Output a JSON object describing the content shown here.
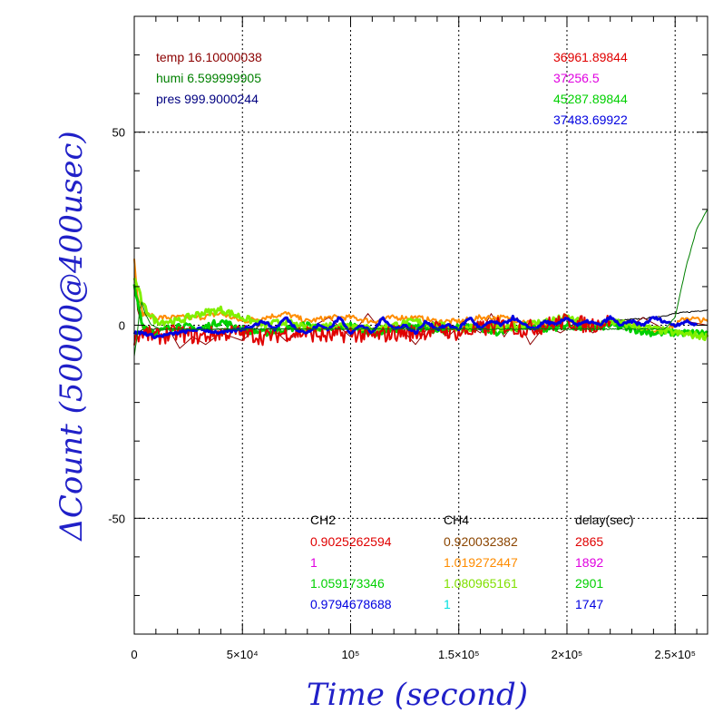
{
  "chart_data": {
    "type": "line",
    "xlabel": "Time (second)",
    "ylabel": "ΔCount (50000@400usec)",
    "xlim": [
      0,
      265000
    ],
    "ylim": [
      -80,
      80
    ],
    "x_ticks": [
      {
        "value": 0,
        "label": "0"
      },
      {
        "value": 50000,
        "label": "5×10⁴"
      },
      {
        "value": 100000,
        "label": "10⁵"
      },
      {
        "value": 150000,
        "label": "1.5×10⁵"
      },
      {
        "value": 200000,
        "label": "2×10⁵"
      },
      {
        "value": 250000,
        "label": "2.5×10⁵"
      }
    ],
    "y_ticks": [
      {
        "value": 50,
        "label": "50"
      },
      {
        "value": 0,
        "label": "0"
      },
      {
        "value": -50,
        "label": "-50"
      }
    ],
    "grid": true,
    "env": [
      {
        "text": "temp 16.10000038",
        "color": "#8b0000"
      },
      {
        "text": "humi 6.599999905",
        "color": "#008000"
      },
      {
        "text": "pres 999.9000244",
        "color": "#000080"
      }
    ],
    "top_right_values": [
      {
        "text": "36961.89844",
        "color": "#e00000"
      },
      {
        "text": "37256.5",
        "color": "#e000e0"
      },
      {
        "text": "45287.89844",
        "color": "#00d000"
      },
      {
        "text": "37483.69922",
        "color": "#0000e0"
      }
    ],
    "table": {
      "headers": [
        "CH2",
        "CH4",
        "delay(sec)"
      ],
      "rows": [
        {
          "ch2": "0.9025262594",
          "ch2_color": "#e00000",
          "ch4": "0.920032382",
          "ch4_color": "#8b4500",
          "delay": "2865",
          "delay_color": "#e00000"
        },
        {
          "ch2": "1",
          "ch2_color": "#e000e0",
          "ch4": "1.019272447",
          "ch4_color": "#ff8c00",
          "delay": "1892",
          "delay_color": "#e000e0"
        },
        {
          "ch2": "1.059173346",
          "ch2_color": "#00d000",
          "ch4": "1.080965161",
          "ch4_color": "#80e000",
          "delay": "2901",
          "delay_color": "#00d000"
        },
        {
          "ch2": "0.9794678688",
          "ch2_color": "#0000e0",
          "ch4": "1",
          "ch4_color": "#00e0e0",
          "delay": "1747",
          "delay_color": "#0000e0"
        }
      ]
    },
    "series": [
      {
        "color": "#000000",
        "width": 1,
        "noise": 0.2,
        "points": [
          [
            0,
            -3
          ],
          [
            4000,
            -1
          ],
          [
            20000,
            -1
          ],
          [
            60000,
            -1
          ],
          [
            100000,
            -1
          ],
          [
            140000,
            -0.5
          ],
          [
            180000,
            -1
          ],
          [
            200000,
            0
          ],
          [
            220000,
            1
          ],
          [
            240000,
            2
          ],
          [
            250000,
            3
          ],
          [
            265000,
            4
          ]
        ]
      },
      {
        "color": "#8b0000",
        "width": 1,
        "noise": 0,
        "points": [
          [
            0,
            16
          ],
          [
            1500,
            4
          ],
          [
            4000,
            -1
          ],
          [
            9000,
            -3
          ],
          [
            15000,
            0
          ],
          [
            21000,
            -6
          ],
          [
            27000,
            -3
          ],
          [
            33000,
            -5
          ],
          [
            40000,
            -2
          ],
          [
            50000,
            -4
          ],
          [
            60000,
            1
          ],
          [
            70000,
            -4
          ],
          [
            80000,
            -1
          ],
          [
            90000,
            2
          ],
          [
            100000,
            -3
          ],
          [
            108000,
            3
          ],
          [
            115000,
            -2
          ],
          [
            122000,
            0
          ],
          [
            130000,
            -5
          ],
          [
            138000,
            1
          ],
          [
            145000,
            -3
          ],
          [
            152000,
            1
          ],
          [
            160000,
            -2
          ],
          [
            165000,
            3
          ],
          [
            171000,
            -3
          ],
          [
            177000,
            2
          ],
          [
            183000,
            -5
          ],
          [
            190000,
            0
          ],
          [
            197000,
            -2
          ],
          [
            205000,
            1
          ],
          [
            212000,
            -2
          ],
          [
            220000,
            1
          ],
          [
            228000,
            -1
          ],
          [
            235000,
            2
          ],
          [
            245000,
            -1
          ],
          [
            255000,
            1
          ],
          [
            265000,
            0
          ]
        ]
      },
      {
        "color": "#ff8c00",
        "width": 2,
        "noise": 0.7,
        "points": [
          [
            0,
            17
          ],
          [
            1500,
            8
          ],
          [
            4000,
            3
          ],
          [
            10000,
            2
          ],
          [
            20000,
            2
          ],
          [
            30000,
            2
          ],
          [
            40000,
            3
          ],
          [
            50000,
            1
          ],
          [
            60000,
            2
          ],
          [
            70000,
            3
          ],
          [
            80000,
            1
          ],
          [
            90000,
            2
          ],
          [
            100000,
            2
          ],
          [
            110000,
            1
          ],
          [
            120000,
            2
          ],
          [
            130000,
            2
          ],
          [
            140000,
            1
          ],
          [
            150000,
            1
          ],
          [
            160000,
            2
          ],
          [
            170000,
            2
          ],
          [
            180000,
            1
          ],
          [
            190000,
            0
          ],
          [
            200000,
            2
          ],
          [
            210000,
            -1
          ],
          [
            220000,
            1
          ],
          [
            230000,
            0
          ],
          [
            240000,
            -2
          ],
          [
            250000,
            0
          ],
          [
            255000,
            2
          ],
          [
            265000,
            1
          ]
        ]
      },
      {
        "color": "#00d000",
        "width": 3,
        "noise": 0.9,
        "points": [
          [
            0,
            10
          ],
          [
            1500,
            6
          ],
          [
            4000,
            0
          ],
          [
            10000,
            -2
          ],
          [
            20000,
            0
          ],
          [
            30000,
            -1
          ],
          [
            40000,
            1
          ],
          [
            50000,
            -1
          ],
          [
            60000,
            -2
          ],
          [
            70000,
            -1
          ],
          [
            80000,
            0
          ],
          [
            90000,
            -1
          ],
          [
            100000,
            0
          ],
          [
            110000,
            -2
          ],
          [
            120000,
            -1
          ],
          [
            130000,
            0
          ],
          [
            140000,
            -2
          ],
          [
            150000,
            0
          ],
          [
            160000,
            -1
          ],
          [
            170000,
            -2
          ],
          [
            180000,
            0
          ],
          [
            190000,
            -1
          ],
          [
            200000,
            0
          ],
          [
            210000,
            -1
          ],
          [
            220000,
            0
          ],
          [
            230000,
            -1
          ],
          [
            240000,
            -2
          ],
          [
            250000,
            -2
          ],
          [
            265000,
            -2
          ]
        ]
      },
      {
        "color": "#80f000",
        "width": 3,
        "noise": 0.9,
        "points": [
          [
            0,
            12
          ],
          [
            1500,
            10
          ],
          [
            4000,
            5
          ],
          [
            10000,
            1
          ],
          [
            20000,
            1
          ],
          [
            30000,
            3
          ],
          [
            40000,
            4
          ],
          [
            50000,
            2
          ],
          [
            60000,
            0
          ],
          [
            70000,
            1
          ],
          [
            80000,
            -1
          ],
          [
            90000,
            0
          ],
          [
            100000,
            0
          ],
          [
            110000,
            -1
          ],
          [
            120000,
            0
          ],
          [
            130000,
            1
          ],
          [
            140000,
            0
          ],
          [
            150000,
            -1
          ],
          [
            160000,
            0
          ],
          [
            170000,
            -1
          ],
          [
            180000,
            0
          ],
          [
            190000,
            1
          ],
          [
            200000,
            2
          ],
          [
            210000,
            0
          ],
          [
            220000,
            1
          ],
          [
            230000,
            0
          ],
          [
            240000,
            -1
          ],
          [
            250000,
            -2
          ],
          [
            265000,
            -3
          ]
        ]
      },
      {
        "color": "#e00000",
        "width": 2,
        "noise": 2.2,
        "points": [
          [
            0,
            -3
          ],
          [
            4000,
            -2
          ],
          [
            10000,
            -3
          ],
          [
            20000,
            -2
          ],
          [
            30000,
            -3
          ],
          [
            40000,
            -2
          ],
          [
            50000,
            -2
          ],
          [
            60000,
            -3
          ],
          [
            70000,
            -2
          ],
          [
            80000,
            -2
          ],
          [
            90000,
            -3
          ],
          [
            100000,
            -2
          ],
          [
            110000,
            -3
          ],
          [
            120000,
            -2
          ],
          [
            130000,
            -2
          ],
          [
            140000,
            -1
          ],
          [
            150000,
            -2
          ],
          [
            160000,
            -1
          ],
          [
            170000,
            0
          ],
          [
            180000,
            -1
          ],
          [
            190000,
            0
          ],
          [
            200000,
            1
          ],
          [
            210000,
            0
          ],
          [
            220000,
            1
          ]
        ]
      },
      {
        "color": "#0000e0",
        "width": 3,
        "noise": 0.4,
        "points": [
          [
            0,
            -2
          ],
          [
            4000,
            -2
          ],
          [
            10000,
            -3
          ],
          [
            20000,
            -2
          ],
          [
            30000,
            -1
          ],
          [
            40000,
            -2
          ],
          [
            50000,
            -1
          ],
          [
            60000,
            1
          ],
          [
            65000,
            -1
          ],
          [
            70000,
            2
          ],
          [
            75000,
            -1
          ],
          [
            80000,
            -2
          ],
          [
            85000,
            0
          ],
          [
            90000,
            -1
          ],
          [
            95000,
            2
          ],
          [
            100000,
            -2
          ],
          [
            105000,
            0
          ],
          [
            110000,
            -2
          ],
          [
            115000,
            2
          ],
          [
            120000,
            -1
          ],
          [
            125000,
            0
          ],
          [
            130000,
            -2
          ],
          [
            135000,
            1
          ],
          [
            140000,
            -1
          ],
          [
            145000,
            0
          ],
          [
            150000,
            -1
          ],
          [
            155000,
            2
          ],
          [
            160000,
            -1
          ],
          [
            165000,
            1
          ],
          [
            170000,
            0
          ],
          [
            175000,
            2
          ],
          [
            180000,
            0
          ],
          [
            185000,
            -1
          ],
          [
            190000,
            1
          ],
          [
            195000,
            0
          ],
          [
            200000,
            2
          ],
          [
            205000,
            0
          ],
          [
            210000,
            1
          ],
          [
            215000,
            0
          ],
          [
            220000,
            2
          ],
          [
            225000,
            0
          ],
          [
            230000,
            1
          ],
          [
            235000,
            0
          ],
          [
            240000,
            2
          ],
          [
            245000,
            1
          ],
          [
            250000,
            0
          ],
          [
            255000,
            1
          ],
          [
            260000,
            0
          ]
        ]
      },
      {
        "color": "#008000",
        "width": 1,
        "noise": 0.15,
        "points": [
          [
            0,
            -8
          ],
          [
            1000,
            -4
          ],
          [
            2500,
            4
          ],
          [
            3500,
            6
          ],
          [
            5000,
            3
          ],
          [
            8000,
            0
          ],
          [
            12000,
            -1
          ],
          [
            30000,
            -1
          ],
          [
            60000,
            -1
          ],
          [
            100000,
            -1
          ],
          [
            150000,
            -1
          ],
          [
            200000,
            -1
          ],
          [
            245000,
            -1
          ],
          [
            250000,
            2
          ],
          [
            255000,
            15
          ],
          [
            260000,
            25
          ],
          [
            265000,
            30
          ]
        ]
      }
    ]
  }
}
